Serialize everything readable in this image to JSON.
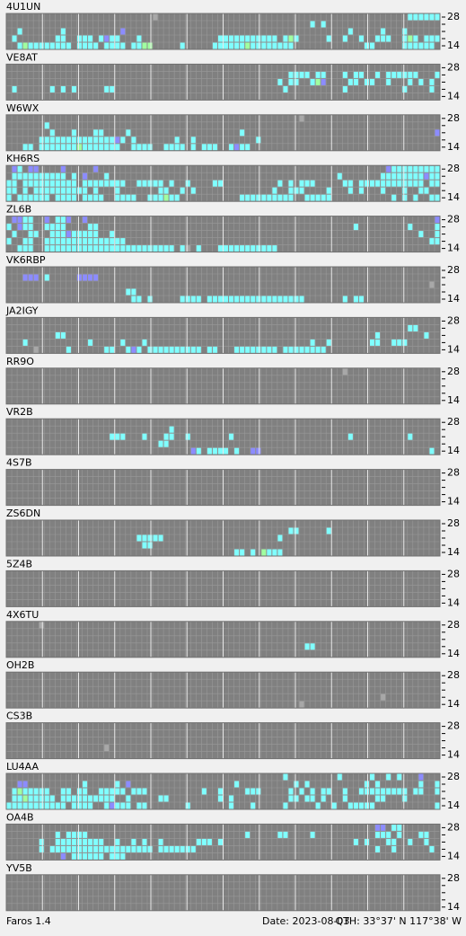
{
  "axis": {
    "top": "28",
    "bottom": "14"
  },
  "stations": [
    {
      "name": "4U1UN",
      "rows": [
        "...........................x..............................................cccccc",
        "........................................................c.c...................",
        "..c.......c..........b.........................................c.....c...c......",
        ".c.......cc..ccc.cbcc...c..............ccccccccccc.cgc.....c..c..c..ccc..cgc.cccc",
        "..cgcccccccc.cccc.cccc.ccgg.....c.....ccccccgcccccccc.............cc.....cccccc.."
      ]
    },
    {
      "name": "VE8AT",
      "rows": [
        ".",
        "....................................................cccc.cc...c.cc..c.cccccc...cc",
        "..................................................c.cc..cgb....cc.cc..c...c.c.c..",
        ".c......c.c.c.....cc...............................c..........c..........c....c.",
        "."
      ]
    },
    {
      "name": "W6WX",
      "rows": [
        "......................................................x.........................",
        ".......c........................................................................",
        "........c...c...cc....c....................c...................................b",
        "......ccccccccccccccbc.c.......c..c...........c.................................",
        "...cc.cccccccgccccccc..cccc..cccc.c.ccc..cbcc...................................c"
      ]
    },
    {
      "name": "KH6RS",
      "rows": [
        ".bc.bb....b.....b.....................................................bcccccccccc",
        ".cccccccccc.c.b...c..........................................c.......ccccccccbccc",
        "cc.cccccccccc.cccccccc..ccccc.c..c....cc..........c.c.ccc.....cc.cccccccccccc.ccc",
        "cc.c.cccccccccc.c...c.......cc..c.c..............c..ccc....c...c.c...c...c..cc...",
        "c.cccccc.cccc.cccc..cccc..cccgcc...........cccccccccc..ccccc...........c.c.c..ccc"
      ]
    },
    {
      "name": "ZL6B",
      "rows": [
        ".bbcc..b.ccb..b................................................................b",
        "c.bcc..cccc....cc...............................................c.........c....cc",
        ".c..cc..cccbccccc..c........................................................c..c",
        "c..cc..ccccccccccccccc........................................................cc.",
        "..ccc..cccccccccccccccccccccccc.cx.c...ccccccccccc.............................."
      ]
    },
    {
      "name": "VK6RBP",
      "rows": [
        ".",
        "...bbb.c.....bbbb...............................................................",
        "..............................................................................x.",
        "......................cc........................................................",
        ".......................cc.c.....cccc.cccccccccccccccccc.......c.cc..............."
      ]
    },
    {
      "name": "JA2IGY",
      "rows": [
        ".",
        "..........................................................................cc....",
        ".........cc.........................................................c........c..",
        "...c...........c.....c...c..............................c..c.......cc..ccc......",
        ".....x.....c......cc..cbc.cccccccccc.cc...cccccccc.cccccccc......................"
      ]
    },
    {
      "name": "RR9O",
      "rows": [
        "..............................................................x.................",
        ".",
        ".",
        ".",
        "."
      ]
    },
    {
      "name": "VR2B",
      "rows": [
        ".",
        "..............................c.................................................",
        "...................ccc...c...cc..c.......c.....................c..........c......",
        "............................cc..................................................",
        "..................................bc.cccc.c..bb...............................c.."
      ]
    },
    {
      "name": "4S7B",
      "rows": [
        ".",
        ".",
        ".",
        ".",
        "."
      ]
    },
    {
      "name": "ZS6DN",
      "rows": [
        ".",
        "....................................................cc.....c......................",
        "........................ccccc.....................c.............................",
        ".........................cc.....................................................",
        "..........................................cc.c.gccc............................."
      ]
    },
    {
      "name": "5Z4B",
      "rows": [
        ".",
        ".",
        ".",
        ".",
        "."
      ]
    },
    {
      "name": "4X6TU",
      "rows": [
        "......x.........................................................................",
        ".",
        ".",
        ".......................................................cc.......................",
        "."
      ]
    },
    {
      "name": "OH2B",
      "rows": [
        ".",
        ".",
        ".",
        ".....................................................................x..........",
        "......................................................x........................."
      ]
    },
    {
      "name": "CS3B",
      "rows": [
        ".",
        ".",
        ".",
        "..................x.............................................................",
        "."
      ]
    },
    {
      "name": "LU4AA",
      "rows": [
        "...................................................c.........c.....c..c.c...b...c",
        "..bb..........c.....c.b...................c..........c.c..........c.c.......c..c.",
        ".cgccccc..cc.cc..ccccc.ccc..........c..c....ccc.....c.c.c.cc..c..ccccccccc.cc..c.",
        ".ccgccccc.cccccccccc..c.....cc.........c.c..........cc.cc.c...c.....cc...c.......",
        "ccccccccccc.cccc..cbccc.cc.......c.......c...c.....c.....c..c..ccccc...........cc"
      ]
    },
    {
      "name": "OA4B",
      "rows": [
        "....................................................................bb.cc........",
        ".........c.cccc.............................c.....cc....c...........ccc.c...cc..",
        "......c..ccccccccc..c..c.c..c......ccc.c........................c.c...cc..c..c..",
        "......c.ccccccccccccccccccc.ccccccc.................................c..c......c.",
        "..........b.cccccc.ccc.........................................................."
      ]
    },
    {
      "name": "YV5B",
      "rows": [
        ".",
        ".",
        ".",
        ".",
        "."
      ]
    }
  ],
  "footer": {
    "version": "Faros 1.4",
    "date": "Date: 2023-08-03",
    "qth": "QTH: 33°37' N  117°38' W"
  }
}
